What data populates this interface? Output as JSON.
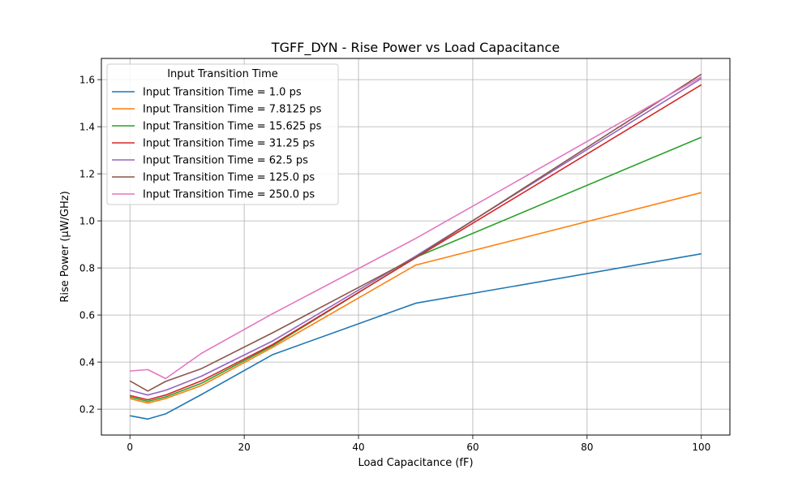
{
  "chart_data": {
    "type": "line",
    "title": "TGFF_DYN - Rise Power vs Load Capacitance",
    "xlabel": "Load Capacitance (fF)",
    "ylabel": "Rise Power (µW/GHz)",
    "xlim": [
      -5,
      105
    ],
    "ylim": [
      0.09,
      1.69
    ],
    "xticks": [
      0,
      20,
      40,
      60,
      80,
      100
    ],
    "yticks": [
      0.2,
      0.4,
      0.6,
      0.8,
      1.0,
      1.2,
      1.4,
      1.6
    ],
    "grid": true,
    "legend": {
      "title": "Input Transition Time",
      "placement": "top-left"
    },
    "x": [
      0.0,
      3.125,
      6.25,
      12.5,
      25.0,
      50.0,
      100.0
    ],
    "series": [
      {
        "name": "Input Transition Time = 1.0 ps",
        "color": "#1f77b4",
        "values": [
          0.172,
          0.158,
          0.18,
          0.262,
          0.432,
          0.65,
          0.86
        ]
      },
      {
        "name": "Input Transition Time = 7.8125 ps",
        "color": "#ff7f0e",
        "values": [
          0.245,
          0.226,
          0.245,
          0.3,
          0.463,
          0.812,
          1.12
        ]
      },
      {
        "name": "Input Transition Time = 15.625 ps",
        "color": "#2ca02c",
        "values": [
          0.252,
          0.233,
          0.252,
          0.31,
          0.47,
          0.845,
          1.355
        ]
      },
      {
        "name": "Input Transition Time = 31.25 ps",
        "color": "#d62728",
        "values": [
          0.258,
          0.24,
          0.26,
          0.32,
          0.475,
          0.843,
          1.578
        ]
      },
      {
        "name": "Input Transition Time = 62.5 ps",
        "color": "#9467bd",
        "values": [
          0.28,
          0.26,
          0.28,
          0.34,
          0.49,
          0.85,
          1.605
        ]
      },
      {
        "name": "Input Transition Time = 125.0 ps",
        "color": "#8c564b",
        "values": [
          0.32,
          0.277,
          0.318,
          0.372,
          0.525,
          0.845,
          1.623
        ]
      },
      {
        "name": "Input Transition Time = 250.0 ps",
        "color": "#e377c2",
        "values": [
          0.362,
          0.368,
          0.33,
          0.437,
          0.606,
          0.925,
          1.612
        ]
      }
    ]
  }
}
